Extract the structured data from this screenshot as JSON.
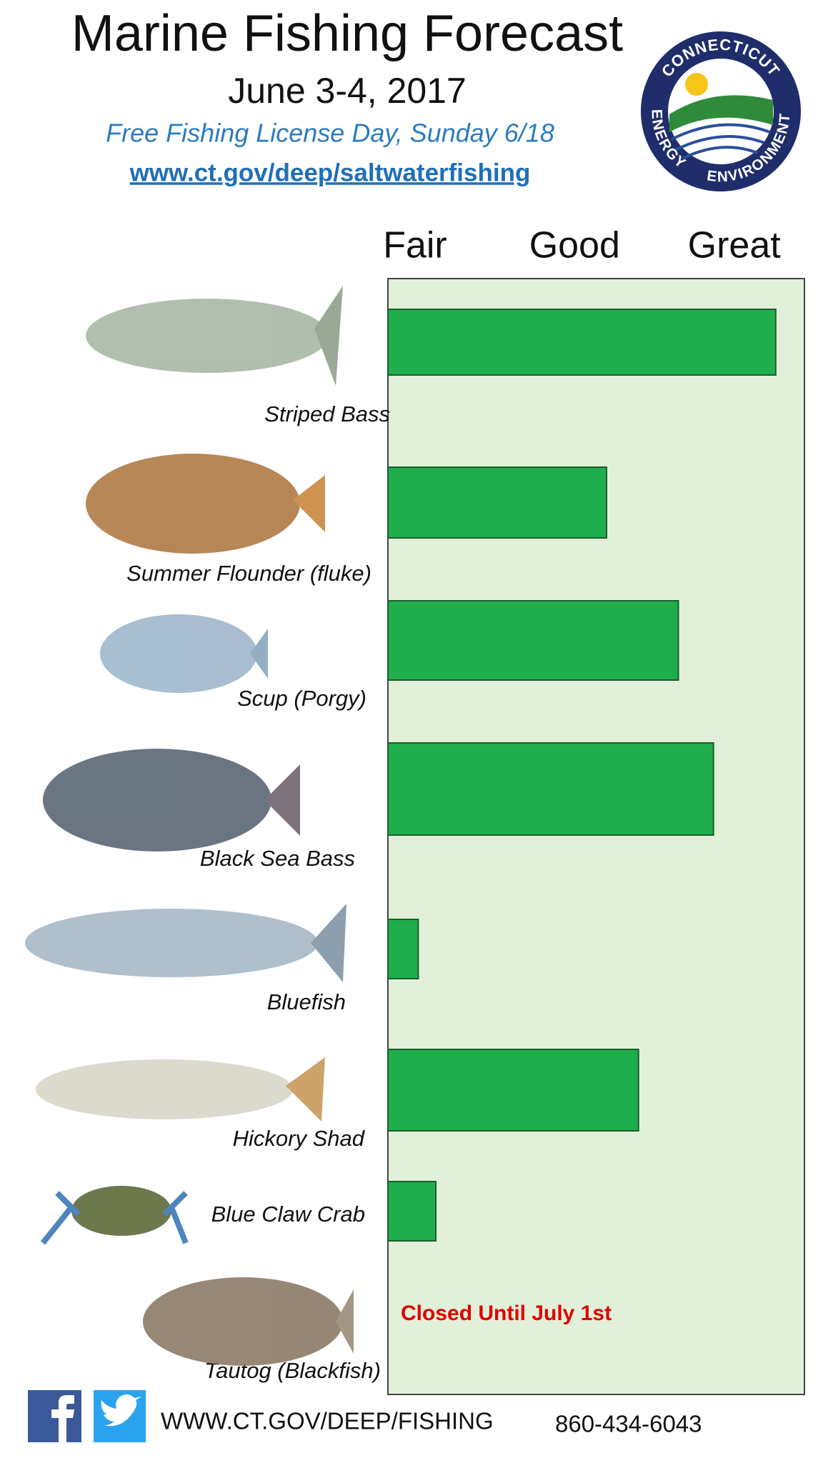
{
  "header": {
    "title": "Marine Fishing Forecast",
    "date": "June 3-4, 2017",
    "note": "Free Fishing License Day, Sunday 6/18",
    "url": "www.ct.gov/deep/saltwaterfishing"
  },
  "logo": {
    "top": "CONNECTICUT",
    "left": "ENERGY",
    "bottom": "ENVIRONMENT"
  },
  "chart_data": {
    "type": "bar",
    "orientation": "horizontal",
    "categories": [
      "Striped Bass",
      "Summer Flounder (fluke)",
      "Scup (Porgy)",
      "Black Sea Bass",
      "Bluefish",
      "Hickory Shad",
      "Blue Claw Crab",
      "Tautog (Blackfish)"
    ],
    "values": [
      3.26,
      2.2,
      2.65,
      2.87,
      1.02,
      2.4,
      1.13,
      null
    ],
    "color": "#1fae4b",
    "plot_background": "#e2f0d9",
    "xlim": [
      0.83,
      3.44
    ],
    "xticks": [
      {
        "value": 1,
        "label": "Fair"
      },
      {
        "value": 2,
        "label": "Good"
      },
      {
        "value": 3,
        "label": "Great"
      }
    ],
    "annotations": [
      {
        "text": "Closed Until July 1st",
        "color": "#e00000"
      }
    ]
  },
  "footer": {
    "website": "WWW.CT.GOV/DEEP/FISHING",
    "phone": "860-434-6043"
  }
}
